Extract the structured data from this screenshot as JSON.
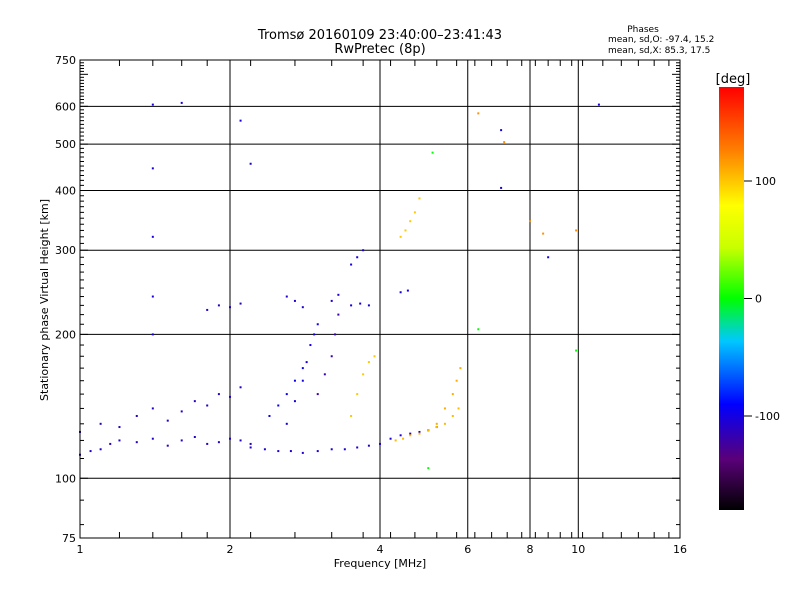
{
  "chart_data": {
    "type": "scatter",
    "title": "Tromsø 20160109 23:40:00–23:41:43",
    "subtitle": "RwPretec (8p)",
    "xlabel": "Frequency [MHz]",
    "ylabel": "Stationary phase Virtual Height [km]",
    "x_scale": "log",
    "y_scale": "log",
    "xlim": [
      1,
      16
    ],
    "ylim": [
      75,
      750
    ],
    "x_ticks": [
      1,
      2,
      4,
      6,
      8,
      10,
      16
    ],
    "x_tick_labels": [
      "1",
      "2",
      "4",
      "6",
      "8",
      "10",
      "16"
    ],
    "y_ticks": [
      75,
      100,
      200,
      300,
      400,
      500,
      600,
      750
    ],
    "y_tick_labels": [
      "75",
      "100",
      "200",
      "300",
      "400",
      "500",
      "600",
      "750"
    ],
    "grid": true,
    "stats": {
      "title": "Phases",
      "line_o": "mean, sd,O: -97.4, 15.2",
      "line_x": "mean, sd,X:  85.3, 17.5"
    },
    "colorbar": {
      "label": "[deg]",
      "range": [
        -180,
        180
      ],
      "ticks": [
        100,
        0,
        -100
      ],
      "tick_labels": [
        "100",
        "0",
        "-100"
      ]
    },
    "traces": [
      {
        "name": "",
        "phase": -110,
        "freq": [
          1.0,
          1.05,
          1.1,
          1.15,
          1.2,
          1.3,
          1.4,
          1.5,
          1.6,
          1.7,
          1.8,
          1.9,
          2.0,
          2.1,
          2.2
        ],
        "height": [
          112,
          114,
          115,
          118,
          120,
          119,
          121,
          117,
          120,
          122,
          118,
          119,
          121,
          120,
          118
        ]
      },
      {
        "name": "",
        "phase": -110,
        "freq": [
          1.0,
          1.1,
          1.2,
          1.3,
          1.4,
          1.5,
          1.6,
          1.7,
          1.8,
          1.9,
          2.0,
          2.1
        ],
        "height": [
          125,
          130,
          128,
          135,
          140,
          132,
          138,
          145,
          142,
          150,
          148,
          155
        ]
      },
      {
        "name": "",
        "phase": -105,
        "freq": [
          2.2,
          2.35,
          2.5,
          2.65,
          2.8,
          3.0,
          3.2,
          3.4,
          3.6,
          3.8,
          4.0,
          4.2,
          4.4,
          4.6,
          4.8,
          5.0,
          5.2
        ],
        "height": [
          116,
          115,
          114,
          114,
          113,
          114,
          115,
          115,
          116,
          117,
          118,
          121,
          123,
          124,
          125,
          126,
          128
        ]
      },
      {
        "name": "",
        "phase": -100,
        "freq": [
          2.6,
          2.7,
          2.8,
          2.85,
          2.9,
          2.95,
          3.0
        ],
        "height": [
          130,
          145,
          160,
          175,
          190,
          200,
          210
        ]
      },
      {
        "name": "",
        "phase": -95,
        "freq": [
          2.4,
          2.5,
          2.6,
          2.7,
          2.8
        ],
        "height": [
          135,
          142,
          150,
          160,
          170
        ]
      },
      {
        "name": "",
        "phase": -120,
        "freq": [
          3.0,
          3.1,
          3.2,
          3.25,
          3.3
        ],
        "height": [
          150,
          165,
          180,
          200,
          220
        ]
      },
      {
        "name": "",
        "phase": -105,
        "freq": [
          2.6,
          2.7,
          2.8,
          3.2,
          3.3
        ],
        "height": [
          240,
          235,
          228,
          235,
          242
        ]
      },
      {
        "name": "",
        "phase": -100,
        "freq": [
          3.5,
          3.6,
          3.7
        ],
        "height": [
          280,
          290,
          300
        ]
      },
      {
        "name": "",
        "phase": -100,
        "freq": [
          3.5,
          3.65,
          3.8,
          4.4,
          4.55
        ],
        "height": [
          230,
          232,
          230,
          245,
          247
        ]
      },
      {
        "name": "",
        "phase": -110,
        "freq": [
          1.8,
          1.9,
          2.0,
          2.1
        ],
        "height": [
          225,
          230,
          228,
          232
        ]
      },
      {
        "name": "",
        "phase": 100,
        "freq": [
          3.5,
          3.6,
          3.7,
          3.8,
          3.9
        ],
        "height": [
          135,
          150,
          165,
          175,
          180
        ]
      },
      {
        "name": "",
        "phase": 105,
        "freq": [
          4.3,
          4.45,
          4.6,
          4.8,
          5.0,
          5.2,
          5.4,
          5.6,
          5.75
        ],
        "height": [
          120,
          121,
          123,
          124,
          126,
          128,
          130,
          135,
          140
        ]
      },
      {
        "name": "",
        "phase": 110,
        "freq": [
          5.2,
          5.4,
          5.6,
          5.7,
          5.8
        ],
        "height": [
          130,
          140,
          150,
          160,
          170
        ]
      },
      {
        "name": "",
        "phase": 100,
        "freq": [
          4.4,
          4.5,
          4.6,
          4.7,
          4.8
        ],
        "height": [
          320,
          330,
          345,
          360,
          385
        ]
      },
      {
        "name": "",
        "phase": -100,
        "freq": [
          1.4,
          1.4,
          1.4,
          1.4,
          1.4,
          1.6,
          2.1,
          2.2,
          7.0,
          7.0,
          8.7,
          11.0
        ],
        "height": [
          605,
          445,
          320,
          240,
          200,
          610,
          560,
          455,
          535,
          405,
          290,
          605
        ]
      },
      {
        "name": "",
        "phase": 0,
        "freq": [
          5.1,
          6.3,
          9.9,
          5.0
        ],
        "height": [
          480,
          205,
          185,
          105
        ]
      },
      {
        "name": "",
        "phase": 120,
        "freq": [
          6.3,
          7.1,
          8.0,
          8.5,
          9.9
        ],
        "height": [
          580,
          505,
          345,
          325,
          330
        ]
      }
    ]
  }
}
